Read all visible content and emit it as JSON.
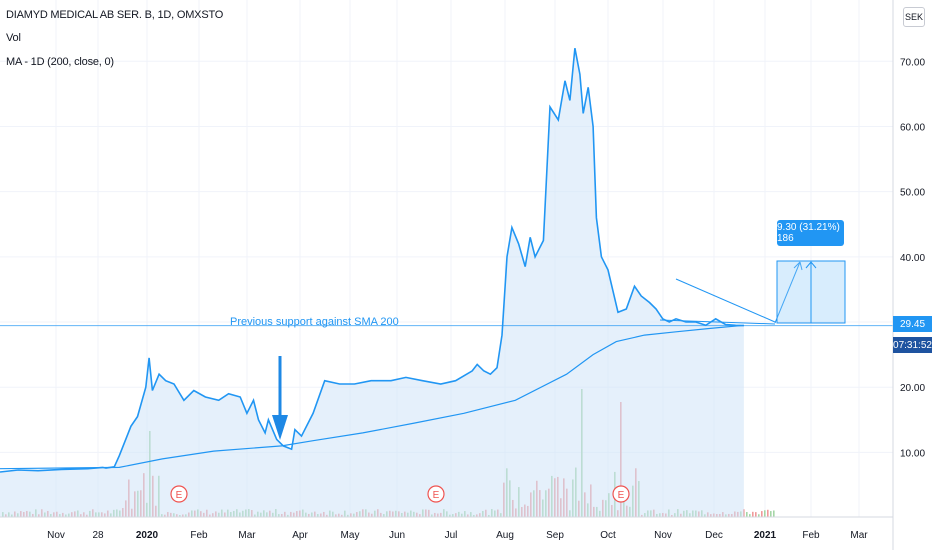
{
  "legend": {
    "symbol": "DIAMYD MEDICAL AB SER. B, 1D, OMXSTO",
    "volume": "Vol",
    "ma": "MA - 1D (200, close, 0)"
  },
  "currency_button": "SEK",
  "last_price_label": "29.45",
  "countdown_label": "07:31:52",
  "annotation": "Previous support against SMA 200",
  "measure_label": "9.30 (31.21%) 186",
  "colors": {
    "price_line": "#2196f3",
    "area_fill": "#cfe4f8",
    "ma_line": "#2196f3",
    "vol_up": "#a5d6a7",
    "vol_down": "#ef9a9a",
    "price_tag": "#2196f3",
    "countdown_tag": "#1e53a0",
    "grid": "#f0f3fa"
  },
  "chart_data": {
    "type": "line",
    "title": "DIAMYD MEDICAL AB SER. B, 1D, OMXSTO",
    "xlabel": "",
    "ylabel": "",
    "ylim": [
      0,
      74
    ],
    "grid": true,
    "x_ticks": [
      "Nov",
      "28",
      "2020",
      "Feb",
      "Mar",
      "Apr",
      "May",
      "Jun",
      "Jul",
      "Aug",
      "Sep",
      "Oct",
      "Nov",
      "Dec",
      "2021",
      "Feb",
      "Mar"
    ],
    "y_ticks": [
      "10.00",
      "20.00",
      "30.00",
      "40.00",
      "50.00",
      "60.00",
      "70.00"
    ],
    "x_range": [
      "2019-10-09",
      "2021-03-31"
    ],
    "series": [
      {
        "name": "DIAMYD MEDICAL AB SER. B",
        "x": [
          "2019-10-09",
          "2019-10-20",
          "2019-11-01",
          "2019-11-15",
          "2019-12-01",
          "2019-12-10",
          "2019-12-12",
          "2019-12-17",
          "2019-12-20",
          "2019-12-27",
          "2019-12-31",
          "2020-01-05",
          "2020-01-07",
          "2020-01-09",
          "2020-01-13",
          "2020-01-17",
          "2020-01-22",
          "2020-01-28",
          "2020-02-03",
          "2020-02-10",
          "2020-02-18",
          "2020-02-24",
          "2020-03-02",
          "2020-03-06",
          "2020-03-10",
          "2020-03-13",
          "2020-03-17",
          "2020-03-19",
          "2020-03-24",
          "2020-03-28",
          "2020-04-02",
          "2020-04-04",
          "2020-04-08",
          "2020-04-15",
          "2020-04-22",
          "2020-05-01",
          "2020-05-10",
          "2020-05-20",
          "2020-06-01",
          "2020-06-10",
          "2020-06-20",
          "2020-07-01",
          "2020-07-10",
          "2020-07-20",
          "2020-07-23",
          "2020-07-27",
          "2020-07-31",
          "2020-08-04",
          "2020-08-07",
          "2020-08-10",
          "2020-08-13",
          "2020-08-17",
          "2020-08-21",
          "2020-08-24",
          "2020-08-27",
          "2020-09-01",
          "2020-09-05",
          "2020-09-10",
          "2020-09-14",
          "2020-09-17",
          "2020-09-20",
          "2020-09-23",
          "2020-09-25",
          "2020-09-28",
          "2020-10-01",
          "2020-10-03",
          "2020-10-06",
          "2020-10-10",
          "2020-10-16",
          "2020-10-21",
          "2020-10-26",
          "2020-10-30",
          "2020-11-04",
          "2020-11-08",
          "2020-11-12",
          "2020-11-16",
          "2020-11-20",
          "2020-11-26",
          "2020-12-02",
          "2020-12-08",
          "2020-12-14",
          "2020-12-20",
          "2020-12-26",
          "2020-12-31"
        ],
        "values": [
          7.0,
          7.3,
          7.2,
          7.4,
          7.5,
          7.7,
          7.6,
          7.8,
          9.5,
          14.0,
          15.5,
          20.0,
          24.5,
          19.5,
          22.0,
          21.0,
          20.5,
          18.0,
          19.5,
          18.5,
          18.0,
          19.0,
          18.5,
          16.0,
          18.0,
          15.0,
          13.0,
          15.0,
          12.0,
          11.0,
          10.5,
          13.5,
          12.5,
          16.0,
          21.0,
          20.5,
          20.5,
          21.0,
          21.0,
          21.5,
          21.0,
          20.5,
          21.0,
          22.5,
          23.5,
          22.5,
          22.0,
          23.0,
          28.0,
          40.0,
          44.5,
          42.0,
          38.5,
          43.0,
          40.0,
          42.5,
          63.0,
          61.0,
          67.0,
          64.0,
          72.0,
          68.0,
          62.0,
          66.0,
          60.0,
          46.0,
          40.0,
          38.0,
          31.5,
          32.0,
          35.5,
          34.0,
          33.0,
          32.0,
          30.5,
          30.0,
          30.5,
          30.0,
          30.0,
          29.5,
          30.5,
          29.6,
          29.5,
          29.45
        ]
      },
      {
        "name": "MA",
        "x": [
          "2019-10-09",
          "2019-12-20",
          "2020-01-15",
          "2020-02-15",
          "2020-03-27",
          "2020-04-15",
          "2020-05-15",
          "2020-06-15",
          "2020-07-15",
          "2020-08-15",
          "2020-09-15",
          "2020-10-01",
          "2020-10-15",
          "2020-11-01",
          "2020-11-20",
          "2020-12-10",
          "2020-12-31"
        ],
        "values": [
          7.5,
          7.7,
          9.0,
          10.2,
          11.0,
          11.8,
          13.0,
          14.5,
          16.0,
          18.0,
          22.0,
          25.0,
          27.0,
          28.0,
          28.5,
          29.0,
          29.5
        ]
      }
    ],
    "volume_peaks": [
      {
        "x": "2020-01-07",
        "direction": "down"
      },
      {
        "x": "2020-09-01",
        "direction": "up"
      },
      {
        "x": "2020-09-24",
        "direction": "down"
      }
    ],
    "earnings_markers": [
      "E",
      "E",
      "E"
    ],
    "drawings": [
      {
        "kind": "horizontal_line",
        "value": 29.45
      },
      {
        "kind": "arrow_down",
        "label": "Previous support against SMA 200"
      },
      {
        "kind": "price_range",
        "label": "9.30 (31.21%) 186"
      }
    ]
  }
}
